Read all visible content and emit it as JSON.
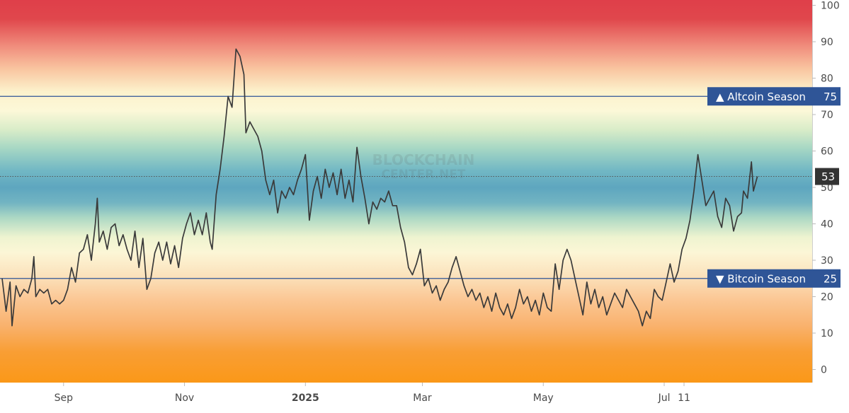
{
  "chart_data": {
    "type": "line",
    "title": "",
    "xlabel": "",
    "ylabel": "",
    "ylim": [
      -3,
      103
    ],
    "y_ticks": [
      0,
      10,
      20,
      30,
      40,
      50,
      60,
      70,
      80,
      90,
      100
    ],
    "x_range": [
      "2024-08-01",
      "2025-08-10"
    ],
    "x_ticks": [
      {
        "label": "Sep",
        "date": "2024-09-01",
        "bold": false
      },
      {
        "label": "Nov",
        "date": "2024-11-01",
        "bold": false
      },
      {
        "label": "2025",
        "date": "2025-01-01",
        "bold": true
      },
      {
        "label": "Mar",
        "date": "2025-03-01",
        "bold": false
      },
      {
        "label": "May",
        "date": "2025-05-01",
        "bold": false
      },
      {
        "label": "Jul",
        "date": "2025-07-01",
        "bold": false
      },
      {
        "label": "11",
        "date": "2025-07-11",
        "bold": false
      }
    ],
    "background": "vertical color gradient bands from red (100) to orange (0)",
    "gradient_colors": [
      "#e0434c",
      "#f29a85",
      "#fbeec4",
      "#fcf8d8",
      "#a9dcc7",
      "#5aa6bf",
      "#fcf8d8",
      "#fbd5a8",
      "#f9ad6a",
      "#f99b2a",
      "#fa9a1a"
    ],
    "line_color": "#3a3a3a",
    "grid": false,
    "legend": "none",
    "watermark": [
      "BLOCKCHAIN",
      "CENTER.NET"
    ],
    "thresholds": [
      {
        "label": "▲ Altcoin Season",
        "value": 75,
        "value_label": "75",
        "color": "#2f5597"
      },
      {
        "label": "▼ Bitcoin Season",
        "value": 25,
        "value_label": "25",
        "color": "#2f5597"
      }
    ],
    "current": {
      "value": 53,
      "label": "53",
      "color": "#333333"
    },
    "series": [
      {
        "points": [
          [
            "2024-08-01",
            25
          ],
          [
            "2024-08-03",
            16
          ],
          [
            "2024-08-05",
            24
          ],
          [
            "2024-08-06",
            12
          ],
          [
            "2024-08-08",
            23
          ],
          [
            "2024-08-10",
            20
          ],
          [
            "2024-08-12",
            22
          ],
          [
            "2024-08-14",
            21
          ],
          [
            "2024-08-16",
            25
          ],
          [
            "2024-08-17",
            31
          ],
          [
            "2024-08-18",
            20
          ],
          [
            "2024-08-20",
            22
          ],
          [
            "2024-08-22",
            21
          ],
          [
            "2024-08-24",
            22
          ],
          [
            "2024-08-26",
            18
          ],
          [
            "2024-08-28",
            19
          ],
          [
            "2024-08-30",
            18
          ],
          [
            "2024-09-01",
            19
          ],
          [
            "2024-09-03",
            22
          ],
          [
            "2024-09-05",
            28
          ],
          [
            "2024-09-07",
            24
          ],
          [
            "2024-09-09",
            32
          ],
          [
            "2024-09-11",
            33
          ],
          [
            "2024-09-13",
            37
          ],
          [
            "2024-09-15",
            30
          ],
          [
            "2024-09-17",
            40
          ],
          [
            "2024-09-18",
            47
          ],
          [
            "2024-09-19",
            35
          ],
          [
            "2024-09-21",
            38
          ],
          [
            "2024-09-23",
            33
          ],
          [
            "2024-09-25",
            39
          ],
          [
            "2024-09-27",
            40
          ],
          [
            "2024-09-29",
            34
          ],
          [
            "2024-10-01",
            37
          ],
          [
            "2024-10-03",
            33
          ],
          [
            "2024-10-05",
            30
          ],
          [
            "2024-10-07",
            38
          ],
          [
            "2024-10-09",
            28
          ],
          [
            "2024-10-11",
            36
          ],
          [
            "2024-10-13",
            22
          ],
          [
            "2024-10-15",
            25
          ],
          [
            "2024-10-17",
            32
          ],
          [
            "2024-10-19",
            35
          ],
          [
            "2024-10-21",
            30
          ],
          [
            "2024-10-23",
            35
          ],
          [
            "2024-10-25",
            29
          ],
          [
            "2024-10-27",
            34
          ],
          [
            "2024-10-29",
            28
          ],
          [
            "2024-10-31",
            36
          ],
          [
            "2024-11-02",
            40
          ],
          [
            "2024-11-04",
            43
          ],
          [
            "2024-11-06",
            37
          ],
          [
            "2024-11-08",
            41
          ],
          [
            "2024-11-10",
            37
          ],
          [
            "2024-11-12",
            43
          ],
          [
            "2024-11-14",
            35
          ],
          [
            "2024-11-15",
            33
          ],
          [
            "2024-11-17",
            48
          ],
          [
            "2024-11-19",
            55
          ],
          [
            "2024-11-21",
            64
          ],
          [
            "2024-11-23",
            75
          ],
          [
            "2024-11-25",
            72
          ],
          [
            "2024-11-26",
            80
          ],
          [
            "2024-11-27",
            88
          ],
          [
            "2024-11-29",
            86
          ],
          [
            "2024-12-01",
            81
          ],
          [
            "2024-12-02",
            65
          ],
          [
            "2024-12-04",
            68
          ],
          [
            "2024-12-06",
            66
          ],
          [
            "2024-12-08",
            64
          ],
          [
            "2024-12-10",
            60
          ],
          [
            "2024-12-12",
            52
          ],
          [
            "2024-12-14",
            48
          ],
          [
            "2024-12-16",
            52
          ],
          [
            "2024-12-18",
            43
          ],
          [
            "2024-12-20",
            49
          ],
          [
            "2024-12-22",
            47
          ],
          [
            "2024-12-24",
            50
          ],
          [
            "2024-12-26",
            48
          ],
          [
            "2024-12-28",
            52
          ],
          [
            "2024-12-30",
            55
          ],
          [
            "2025-01-01",
            59
          ],
          [
            "2025-01-03",
            41
          ],
          [
            "2025-01-05",
            49
          ],
          [
            "2025-01-07",
            53
          ],
          [
            "2025-01-09",
            47
          ],
          [
            "2025-01-11",
            55
          ],
          [
            "2025-01-13",
            50
          ],
          [
            "2025-01-15",
            54
          ],
          [
            "2025-01-17",
            48
          ],
          [
            "2025-01-19",
            55
          ],
          [
            "2025-01-21",
            47
          ],
          [
            "2025-01-23",
            52
          ],
          [
            "2025-01-25",
            46
          ],
          [
            "2025-01-27",
            61
          ],
          [
            "2025-01-29",
            53
          ],
          [
            "2025-01-31",
            47
          ],
          [
            "2025-02-02",
            40
          ],
          [
            "2025-02-04",
            46
          ],
          [
            "2025-02-06",
            44
          ],
          [
            "2025-02-08",
            47
          ],
          [
            "2025-02-10",
            46
          ],
          [
            "2025-02-12",
            49
          ],
          [
            "2025-02-14",
            45
          ],
          [
            "2025-02-16",
            45
          ],
          [
            "2025-02-18",
            39
          ],
          [
            "2025-02-20",
            35
          ],
          [
            "2025-02-22",
            28
          ],
          [
            "2025-02-24",
            26
          ],
          [
            "2025-02-26",
            29
          ],
          [
            "2025-02-28",
            33
          ],
          [
            "2025-03-02",
            23
          ],
          [
            "2025-03-04",
            25
          ],
          [
            "2025-03-06",
            21
          ],
          [
            "2025-03-08",
            23
          ],
          [
            "2025-03-10",
            19
          ],
          [
            "2025-03-12",
            22
          ],
          [
            "2025-03-14",
            24
          ],
          [
            "2025-03-16",
            28
          ],
          [
            "2025-03-18",
            31
          ],
          [
            "2025-03-20",
            27
          ],
          [
            "2025-03-22",
            23
          ],
          [
            "2025-03-24",
            20
          ],
          [
            "2025-03-26",
            22
          ],
          [
            "2025-03-28",
            19
          ],
          [
            "2025-03-30",
            21
          ],
          [
            "2025-04-01",
            17
          ],
          [
            "2025-04-03",
            20
          ],
          [
            "2025-04-05",
            16
          ],
          [
            "2025-04-07",
            21
          ],
          [
            "2025-04-09",
            17
          ],
          [
            "2025-04-11",
            15
          ],
          [
            "2025-04-13",
            18
          ],
          [
            "2025-04-15",
            14
          ],
          [
            "2025-04-17",
            17
          ],
          [
            "2025-04-19",
            22
          ],
          [
            "2025-04-21",
            18
          ],
          [
            "2025-04-23",
            20
          ],
          [
            "2025-04-25",
            16
          ],
          [
            "2025-04-27",
            19
          ],
          [
            "2025-04-29",
            15
          ],
          [
            "2025-05-01",
            21
          ],
          [
            "2025-05-03",
            17
          ],
          [
            "2025-05-05",
            16
          ],
          [
            "2025-05-07",
            29
          ],
          [
            "2025-05-09",
            22
          ],
          [
            "2025-05-11",
            30
          ],
          [
            "2025-05-13",
            33
          ],
          [
            "2025-05-15",
            30
          ],
          [
            "2025-05-17",
            25
          ],
          [
            "2025-05-19",
            20
          ],
          [
            "2025-05-21",
            15
          ],
          [
            "2025-05-23",
            24
          ],
          [
            "2025-05-25",
            18
          ],
          [
            "2025-05-27",
            22
          ],
          [
            "2025-05-29",
            17
          ],
          [
            "2025-05-31",
            20
          ],
          [
            "2025-06-02",
            15
          ],
          [
            "2025-06-04",
            18
          ],
          [
            "2025-06-06",
            21
          ],
          [
            "2025-06-08",
            19
          ],
          [
            "2025-06-10",
            17
          ],
          [
            "2025-06-12",
            22
          ],
          [
            "2025-06-14",
            20
          ],
          [
            "2025-06-16",
            18
          ],
          [
            "2025-06-18",
            16
          ],
          [
            "2025-06-20",
            12
          ],
          [
            "2025-06-22",
            16
          ],
          [
            "2025-06-24",
            14
          ],
          [
            "2025-06-26",
            22
          ],
          [
            "2025-06-28",
            20
          ],
          [
            "2025-06-30",
            19
          ],
          [
            "2025-07-02",
            24
          ],
          [
            "2025-07-04",
            29
          ],
          [
            "2025-07-06",
            24
          ],
          [
            "2025-07-08",
            27
          ],
          [
            "2025-07-10",
            33
          ],
          [
            "2025-07-12",
            36
          ],
          [
            "2025-07-14",
            41
          ],
          [
            "2025-07-16",
            49
          ],
          [
            "2025-07-18",
            59
          ],
          [
            "2025-07-20",
            52
          ],
          [
            "2025-07-22",
            45
          ],
          [
            "2025-07-24",
            47
          ],
          [
            "2025-07-26",
            49
          ],
          [
            "2025-07-28",
            42
          ],
          [
            "2025-07-30",
            39
          ],
          [
            "2025-08-01",
            47
          ],
          [
            "2025-08-03",
            45
          ],
          [
            "2025-08-05",
            38
          ],
          [
            "2025-08-07",
            42
          ],
          [
            "2025-08-09",
            43
          ],
          [
            "2025-08-10",
            49
          ],
          [
            "2025-08-12",
            47
          ],
          [
            "2025-08-14",
            57
          ],
          [
            "2025-08-15",
            49
          ],
          [
            "2025-08-17",
            53
          ]
        ]
      }
    ]
  }
}
